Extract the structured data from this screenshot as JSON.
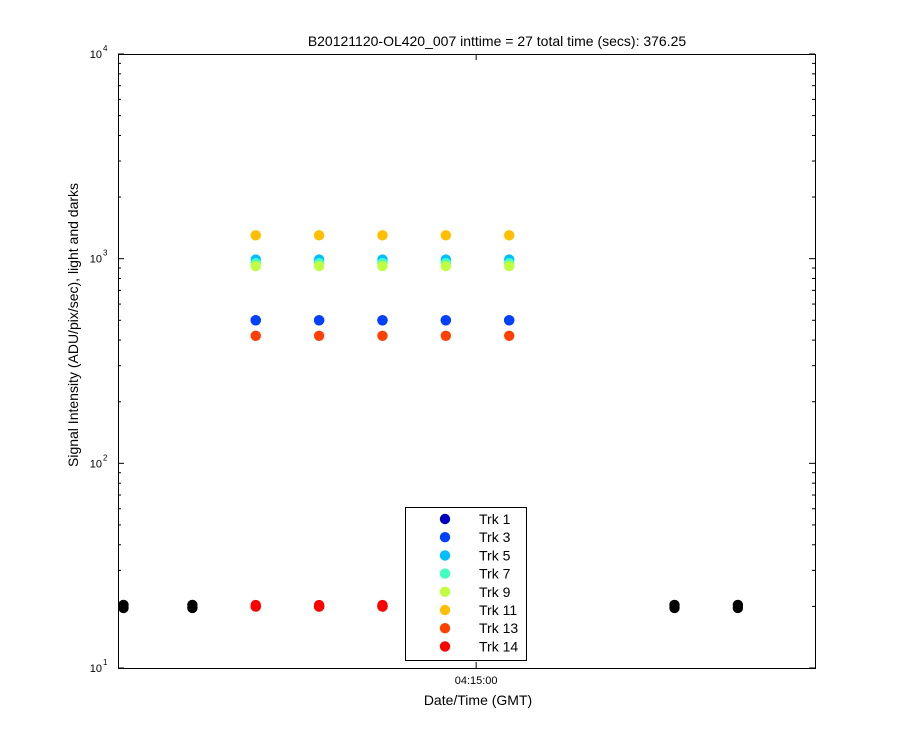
{
  "chart_data": {
    "type": "scatter",
    "title": "B20121120-OL420_007 inttime = 27 total time (secs): 376.25",
    "xlabel": "Date/Time (GMT)",
    "ylabel": "Signal Intensity (ADU/pix/sec), light and darks",
    "x_ticks": [
      {
        "value": "04:15:00",
        "label": "04:15:00"
      }
    ],
    "x_range": [
      "04:12:50",
      "04:17:03"
    ],
    "y_scale": "log",
    "y_range": [
      10,
      10000
    ],
    "y_ticks": [
      {
        "value": 10,
        "base": "10",
        "exp": "1"
      },
      {
        "value": 100,
        "base": "10",
        "exp": "2"
      },
      {
        "value": 1000,
        "base": "10",
        "exp": "3"
      },
      {
        "value": 10000,
        "base": "10",
        "exp": "4"
      }
    ],
    "grid": false,
    "legend_position": "bottom-center",
    "light_frames": [
      "04:13:40",
      "04:14:03",
      "04:14:26",
      "04:14:49",
      "04:15:12"
    ],
    "series": [
      {
        "name": "Trk 1",
        "color": "#0000bf",
        "light": [
          500,
          500,
          500,
          500,
          500
        ],
        "dark": [
          20,
          20,
          20,
          20,
          20
        ]
      },
      {
        "name": "Trk 3",
        "color": "#0040ff",
        "light": [
          500,
          500,
          500,
          500,
          500
        ],
        "dark": [
          20,
          20,
          20,
          20,
          20
        ]
      },
      {
        "name": "Trk 5",
        "color": "#00bfff",
        "light": [
          990,
          990,
          990,
          990,
          990
        ],
        "dark": [
          20,
          20,
          20,
          20,
          20
        ]
      },
      {
        "name": "Trk 7",
        "color": "#40ffbf",
        "light": [
          950,
          950,
          950,
          950,
          950
        ],
        "dark": [
          20,
          20,
          20,
          20,
          20
        ]
      },
      {
        "name": "Trk 9",
        "color": "#bfff40",
        "light": [
          920,
          920,
          920,
          920,
          920
        ],
        "dark": [
          20,
          20,
          20,
          20,
          20
        ]
      },
      {
        "name": "Trk 11",
        "color": "#ffbf00",
        "light": [
          1300,
          1300,
          1300,
          1300,
          1300
        ],
        "dark": [
          20,
          20,
          20,
          20,
          20
        ]
      },
      {
        "name": "Trk 13",
        "color": "#ff4000",
        "light": [
          420,
          420,
          420,
          420,
          420
        ],
        "dark": [
          20,
          20,
          20,
          20,
          20
        ]
      },
      {
        "name": "Trk 14",
        "color": "#ff0000",
        "light": [
          20.3,
          20.3,
          20.3,
          20.3,
          20.3
        ],
        "dark": [
          20,
          20,
          20,
          20,
          20
        ]
      }
    ],
    "dark_frames": {
      "color": "#000000",
      "x": [
        "04:12:52",
        "04:13:17",
        "04:16:12",
        "04:16:35"
      ],
      "y": [
        20,
        20,
        20,
        20
      ]
    }
  }
}
